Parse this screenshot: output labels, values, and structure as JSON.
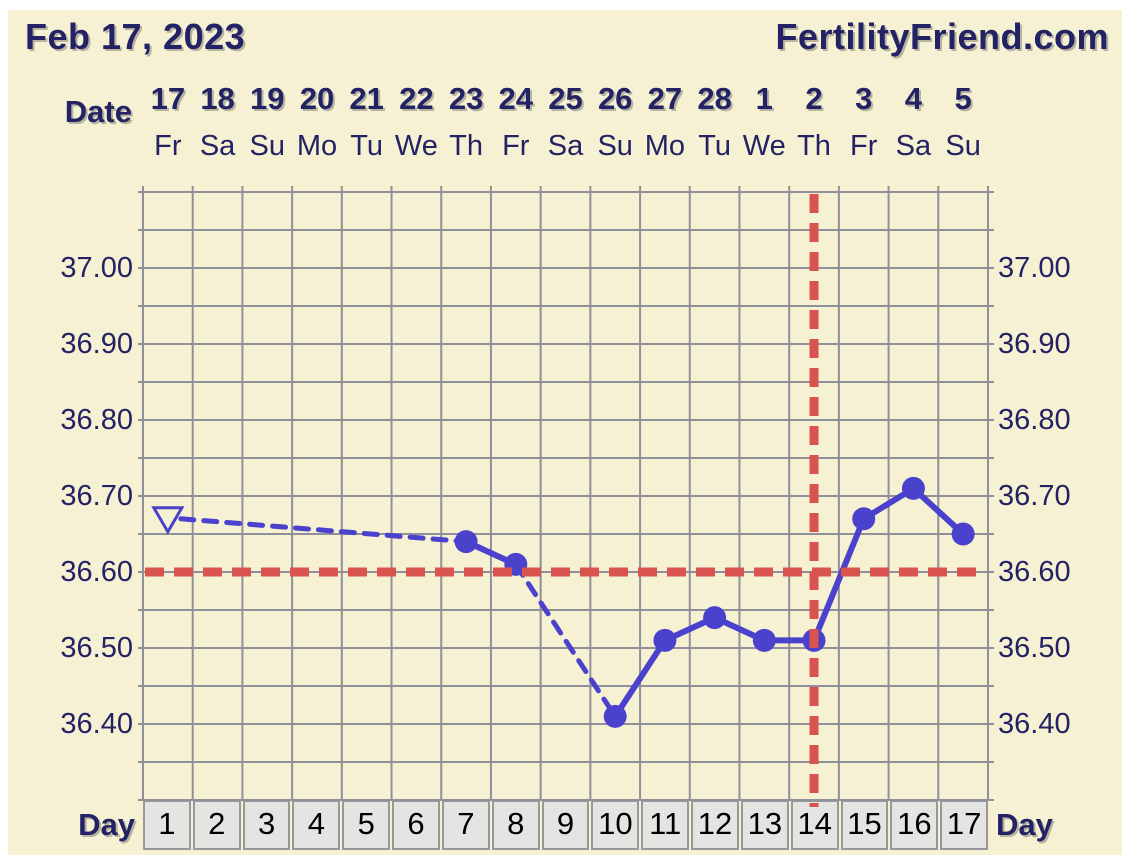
{
  "header": {
    "date_title": "Feb 17, 2023",
    "site": "FertilityFriend.com"
  },
  "axis": {
    "date_label": "Date",
    "day_label_left": "Day",
    "day_label_right": "Day"
  },
  "chart_data": {
    "type": "line",
    "title": "Basal body temperature chart",
    "x": [
      1,
      2,
      3,
      4,
      5,
      6,
      7,
      8,
      9,
      10,
      11,
      12,
      13,
      14,
      15,
      16,
      17
    ],
    "day_numbers": [
      "1",
      "2",
      "3",
      "4",
      "5",
      "6",
      "7",
      "8",
      "9",
      "10",
      "11",
      "12",
      "13",
      "14",
      "15",
      "16",
      "17"
    ],
    "dates": [
      "17",
      "18",
      "19",
      "20",
      "21",
      "22",
      "23",
      "24",
      "25",
      "26",
      "27",
      "28",
      "1",
      "2",
      "3",
      "4",
      "5"
    ],
    "weekdays": [
      "Fr",
      "Sa",
      "Su",
      "Mo",
      "Tu",
      "We",
      "Th",
      "Fr",
      "Sa",
      "Su",
      "Mo",
      "Tu",
      "We",
      "Th",
      "Fr",
      "Sa",
      "Su"
    ],
    "series": [
      {
        "name": "temperature",
        "values": [
          36.67,
          null,
          null,
          null,
          null,
          null,
          36.64,
          36.61,
          null,
          36.41,
          36.51,
          36.54,
          36.51,
          36.51,
          36.67,
          36.71,
          36.65
        ]
      }
    ],
    "first_point_marker": "open-triangle-down",
    "gap_line_style": "dashed",
    "coverline_value": 36.6,
    "ovulation_day": 14,
    "ylim": [
      36.3,
      37.1
    ],
    "ystep": 0.05,
    "y_tick_labels": [
      "37.00",
      "36.90",
      "36.80",
      "36.70",
      "36.60",
      "36.50",
      "36.40"
    ],
    "grid": true,
    "legend": "none"
  },
  "colors": {
    "page_background": "#ffffff",
    "panel_background": "#f6f1d2",
    "text_navy": "#232264",
    "grid_line": "#90909a",
    "series_blue": "#4a41cc",
    "reference_red": "#d9534f",
    "day_cell_background": "#e4e4e2",
    "day_cell_border": "#98989a"
  }
}
